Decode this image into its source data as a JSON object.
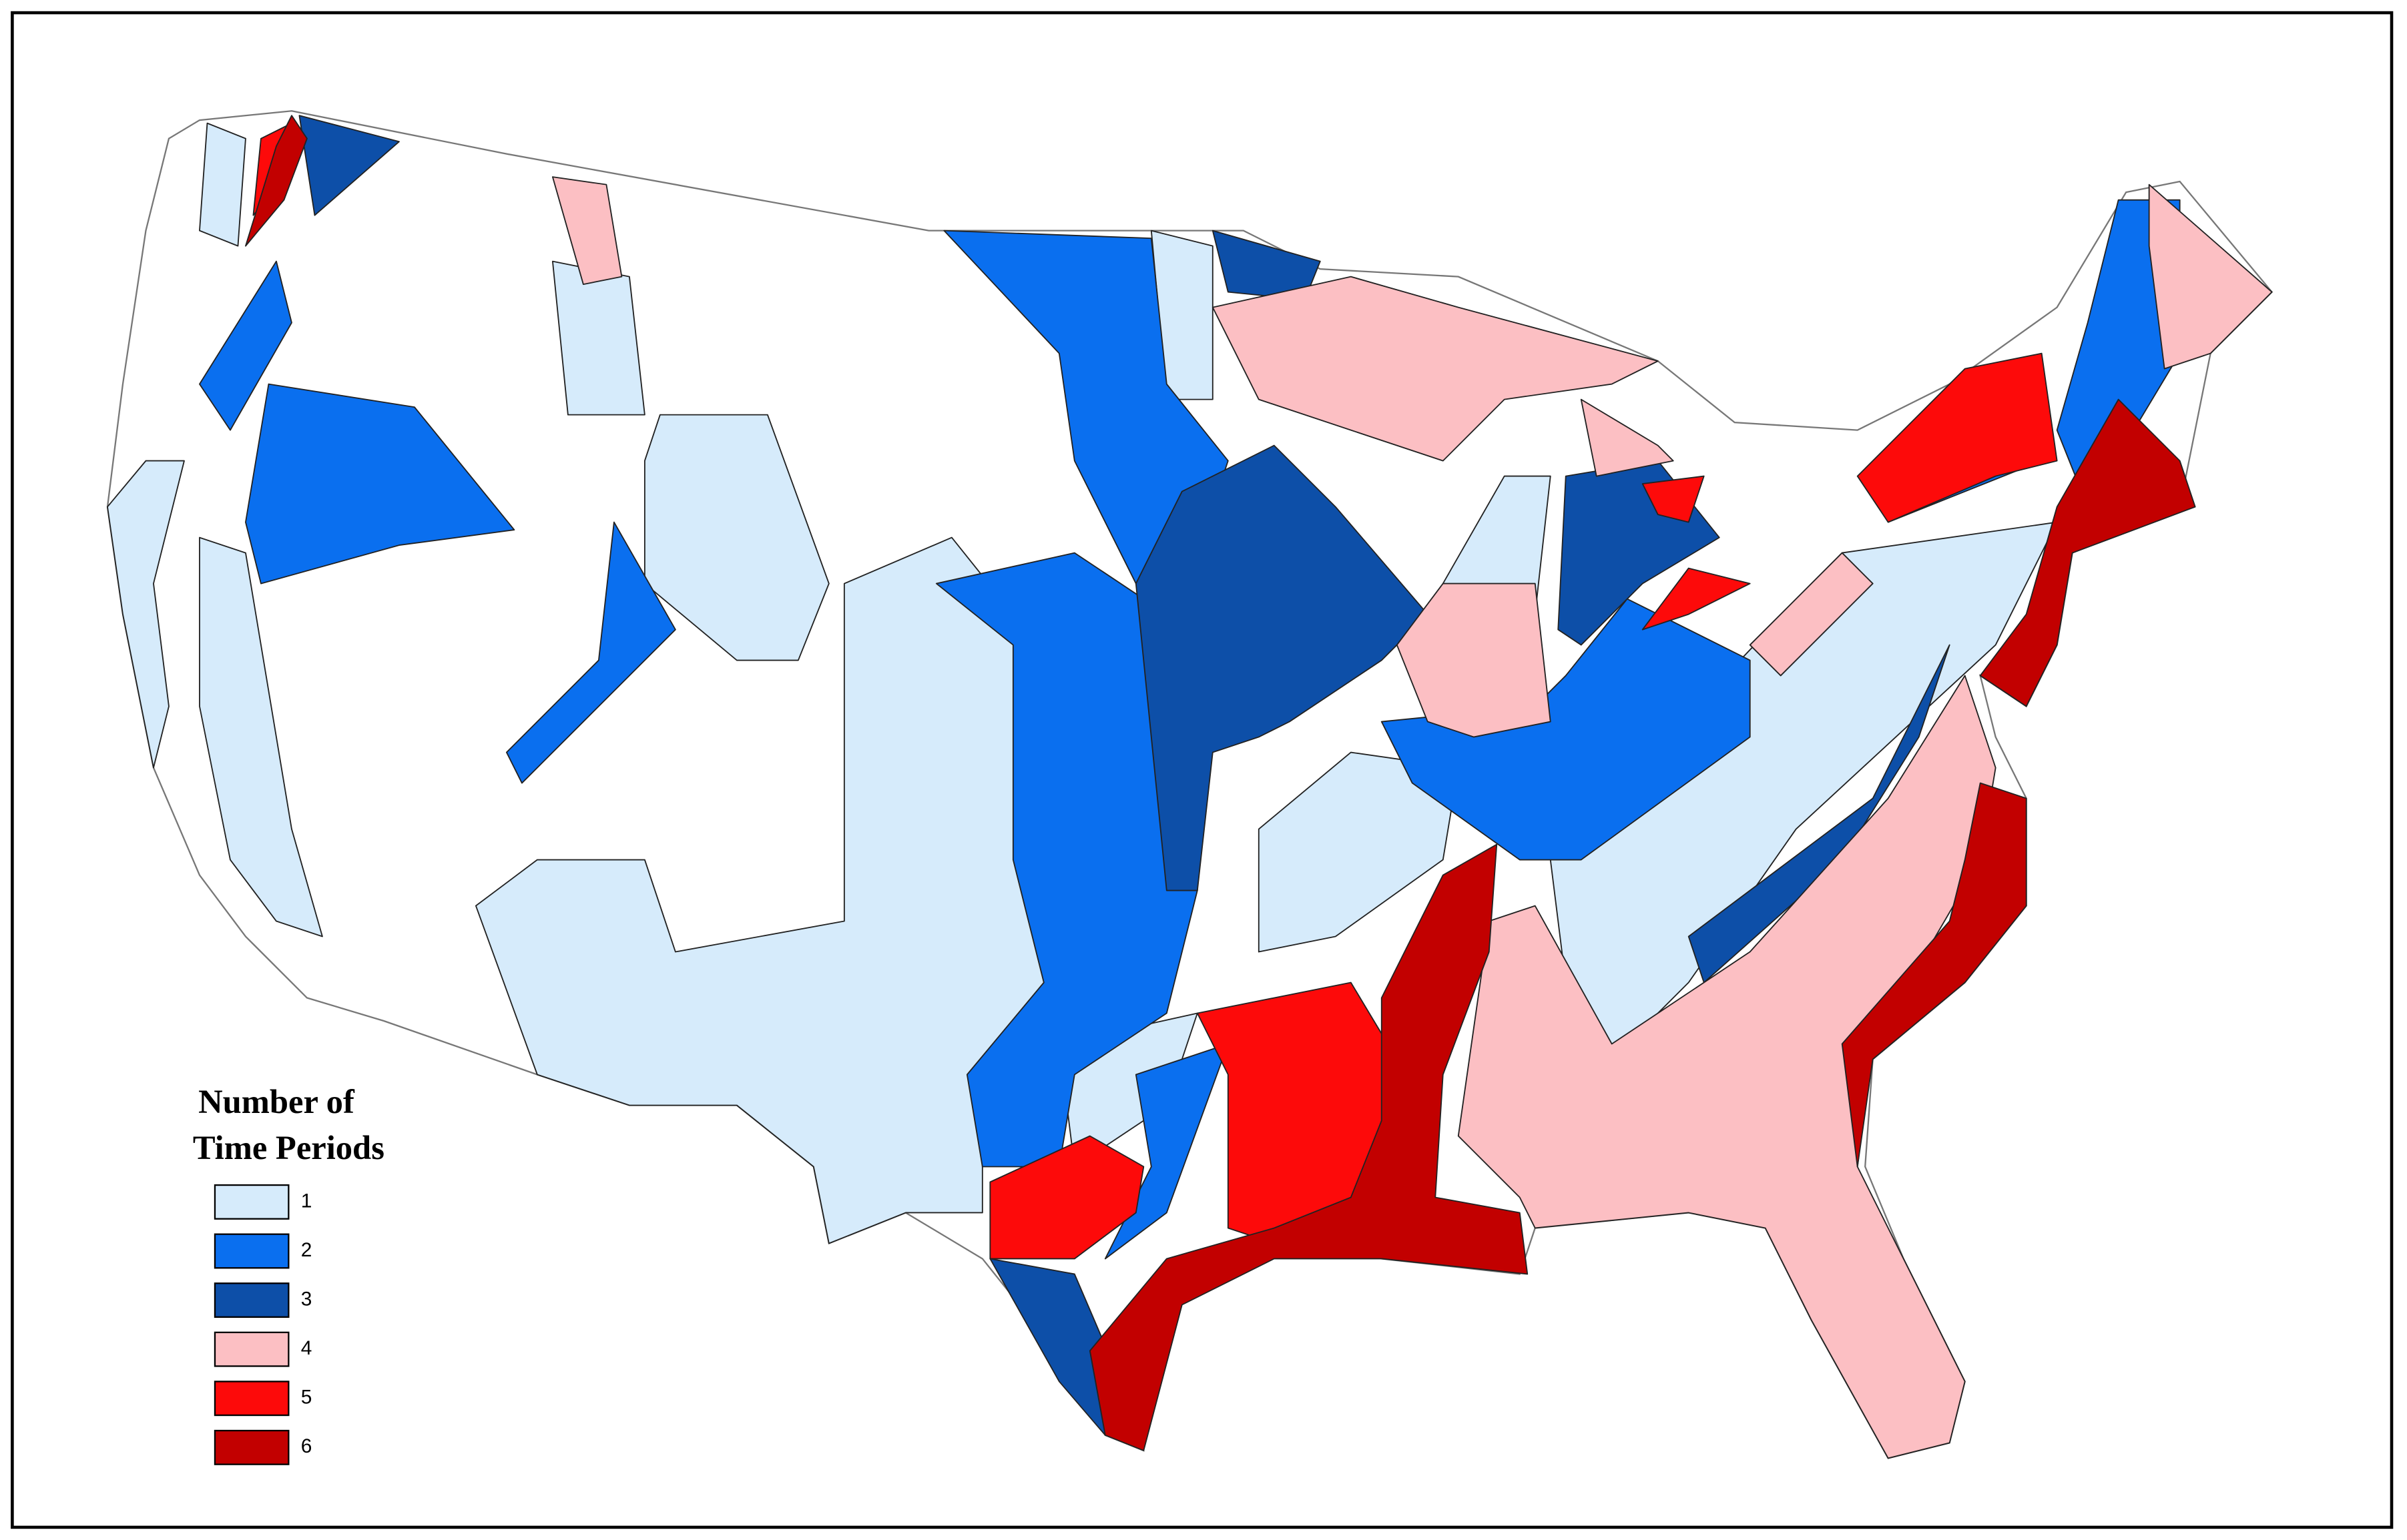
{
  "legend": {
    "title": [
      "Number of",
      "Time Periods"
    ],
    "items": [
      {
        "label": "1",
        "color": "#d6ebfb"
      },
      {
        "label": "2",
        "color": "#0a6fef"
      },
      {
        "label": "3",
        "color": "#0d4fa8"
      },
      {
        "label": "4",
        "color": "#fcbfc3"
      },
      {
        "label": "5",
        "color": "#fd0a0a"
      },
      {
        "label": "6",
        "color": "#c20000"
      }
    ]
  }
}
